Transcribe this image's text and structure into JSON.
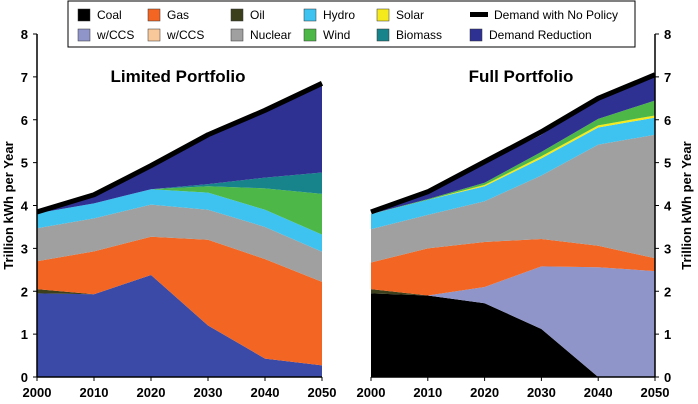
{
  "legend": [
    {
      "key": "coal",
      "label": "Coal",
      "color": "#000000"
    },
    {
      "key": "gas",
      "label": "Gas",
      "color": "#f26522"
    },
    {
      "key": "oil",
      "label": "Oil",
      "color": "#3b3f1c"
    },
    {
      "key": "hydro",
      "label": "Hydro",
      "color": "#3ec3f0"
    },
    {
      "key": "solar",
      "label": "Solar",
      "color": "#f4ea1c"
    },
    {
      "key": "demand_no_policy",
      "label": "Demand with No Policy",
      "color": "#000000"
    },
    {
      "key": "coal_ccs",
      "label": "w/CCS",
      "color": "#8f95c8"
    },
    {
      "key": "gas_ccs",
      "label": "w/CCS",
      "color": "#f8c79a"
    },
    {
      "key": "nuclear",
      "label": "Nuclear",
      "color": "#a0a0a0"
    },
    {
      "key": "wind",
      "label": "Wind",
      "color": "#4db848"
    },
    {
      "key": "biomass",
      "label": "Biomass",
      "color": "#17838a"
    },
    {
      "key": "demand_reduction",
      "label": "Demand Reduction",
      "color": "#2e3192"
    }
  ],
  "chart_data": [
    {
      "type": "area",
      "title": "Limited Portfolio",
      "xlabel": "",
      "ylabel": "Trillion kWh per Year",
      "x": [
        2000,
        2010,
        2020,
        2030,
        2040,
        2050
      ],
      "xticks": [
        "2000",
        "2010",
        "2020",
        "2030",
        "2040",
        "2050"
      ],
      "ylim": [
        0,
        8
      ],
      "yticks": [
        "0",
        "1",
        "2",
        "3",
        "4",
        "5",
        "6",
        "7",
        "8"
      ],
      "stacked": true,
      "base_color": "#3a4aa6",
      "series": [
        {
          "name": "Coal",
          "values": [
            1.95,
            1.93,
            2.38,
            1.2,
            0.43,
            0.27
          ]
        },
        {
          "name": "Oil",
          "values": [
            0.1,
            0.0,
            0.0,
            0.0,
            0.0,
            0.0
          ]
        },
        {
          "name": "Gas",
          "values": [
            0.65,
            1.0,
            0.89,
            2.0,
            2.32,
            1.95
          ]
        },
        {
          "name": "Nuclear",
          "values": [
            0.77,
            0.77,
            0.75,
            0.7,
            0.75,
            0.7
          ]
        },
        {
          "name": "Hydro",
          "values": [
            0.35,
            0.35,
            0.36,
            0.4,
            0.4,
            0.4
          ]
        },
        {
          "name": "Wind",
          "values": [
            0.0,
            0.0,
            0.0,
            0.15,
            0.5,
            0.95
          ]
        },
        {
          "name": "Biomass",
          "values": [
            0.0,
            0.0,
            0.0,
            0.05,
            0.25,
            0.5
          ]
        },
        {
          "name": "Demand Reduction",
          "values": [
            0.03,
            0.2,
            0.55,
            1.2,
            1.57,
            2.08
          ]
        }
      ],
      "demand_no_policy": [
        3.85,
        4.25,
        4.93,
        5.65,
        6.22,
        6.85
      ]
    },
    {
      "type": "area",
      "title": "Full Portfolio",
      "xlabel": "",
      "ylabel": "Trillion kWh per Year",
      "x": [
        2000,
        2010,
        2020,
        2030,
        2040,
        2050
      ],
      "xticks": [
        "2000",
        "2010",
        "2020",
        "2030",
        "2040",
        "2050"
      ],
      "ylim": [
        0,
        8
      ],
      "yticks": [
        "0",
        "1",
        "2",
        "3",
        "4",
        "5",
        "6",
        "7",
        "8"
      ],
      "stacked": true,
      "series": [
        {
          "name": "Coal",
          "values": [
            1.95,
            1.9,
            1.72,
            1.12,
            0.0,
            0.0
          ]
        },
        {
          "name": "Coal w/CCS",
          "values": [
            0.0,
            0.0,
            0.38,
            1.46,
            2.56,
            2.47
          ]
        },
        {
          "name": "Oil",
          "values": [
            0.1,
            0.0,
            0.0,
            0.0,
            0.0,
            0.0
          ]
        },
        {
          "name": "Gas",
          "values": [
            0.62,
            1.1,
            1.05,
            0.64,
            0.5,
            0.3
          ]
        },
        {
          "name": "Nuclear",
          "values": [
            0.78,
            0.78,
            0.95,
            1.48,
            2.36,
            2.88
          ]
        },
        {
          "name": "Hydro",
          "values": [
            0.35,
            0.35,
            0.35,
            0.4,
            0.4,
            0.4
          ]
        },
        {
          "name": "Solar",
          "values": [
            0.0,
            0.0,
            0.03,
            0.05,
            0.05,
            0.05
          ]
        },
        {
          "name": "Wind",
          "values": [
            0.0,
            0.02,
            0.05,
            0.1,
            0.15,
            0.35
          ]
        },
        {
          "name": "Demand Reduction",
          "values": [
            0.0,
            0.15,
            0.45,
            0.4,
            0.5,
            0.6
          ]
        }
      ],
      "demand_no_policy": [
        3.85,
        4.32,
        5.02,
        5.72,
        6.5,
        7.05
      ]
    }
  ]
}
